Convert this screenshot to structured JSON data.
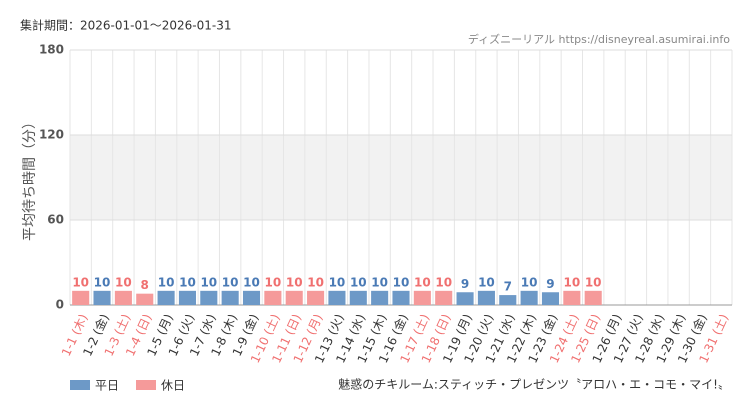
{
  "chart_data": {
    "type": "bar",
    "period": "集計期間：2026-01-01～2026-01-31",
    "source": "ディズニーリアル https://disneyreal.asumirai.info",
    "y_label": "平均待ち時間（分）",
    "footer": "魅惑のチキルーム:スティッチ・プレゼンツ〝アロハ・エ・コモ・マイ!〟",
    "categories": [
      "1-1 (木)",
      "1-2 (金)",
      "1-3 (土)",
      "1-4 (日)",
      "1-5 (月)",
      "1-6 (火)",
      "1-7 (水)",
      "1-8 (木)",
      "1-9 (金)",
      "1-10 (土)",
      "1-11 (日)",
      "1-12 (月)",
      "1-13 (火)",
      "1-14 (水)",
      "1-15 (木)",
      "1-16 (金)",
      "1-17 (土)",
      "1-18 (日)",
      "1-19 (月)",
      "1-20 (火)",
      "1-21 (水)",
      "1-22 (木)",
      "1-23 (金)",
      "1-24 (土)",
      "1-25 (日)",
      "1-26 (月)",
      "1-27 (火)",
      "1-28 (水)",
      "1-29 (木)",
      "1-30 (金)",
      "1-31 (土)"
    ],
    "category_colors": [
      "#f07070",
      "#333333",
      "#f07070",
      "#f07070",
      "#333333",
      "#333333",
      "#333333",
      "#333333",
      "#333333",
      "#f07070",
      "#f07070",
      "#f07070",
      "#333333",
      "#333333",
      "#333333",
      "#333333",
      "#f07070",
      "#f07070",
      "#333333",
      "#333333",
      "#333333",
      "#333333",
      "#333333",
      "#f07070",
      "#f07070",
      "#333333",
      "#333333",
      "#333333",
      "#333333",
      "#333333",
      "#f07070"
    ],
    "series": [
      {
        "name": "平日",
        "color": "#6d99c7",
        "label_color": "#4a7ab5",
        "values": [
          null,
          10,
          null,
          null,
          10,
          10,
          10,
          10,
          10,
          null,
          null,
          null,
          10,
          10,
          10,
          10,
          null,
          null,
          9,
          10,
          7,
          10,
          9,
          null,
          null,
          null,
          null,
          null,
          null,
          null,
          null
        ]
      },
      {
        "name": "休日",
        "color": "#f59a9a",
        "label_color": "#f07070",
        "values": [
          10,
          null,
          10,
          8,
          null,
          null,
          null,
          null,
          null,
          10,
          10,
          10,
          null,
          null,
          null,
          null,
          10,
          10,
          null,
          null,
          null,
          null,
          null,
          10,
          10,
          null,
          null,
          null,
          null,
          null,
          null
        ]
      }
    ],
    "ylim": [
      0,
      180
    ],
    "yticks": [
      0,
      60,
      120,
      180
    ],
    "grid": true
  }
}
